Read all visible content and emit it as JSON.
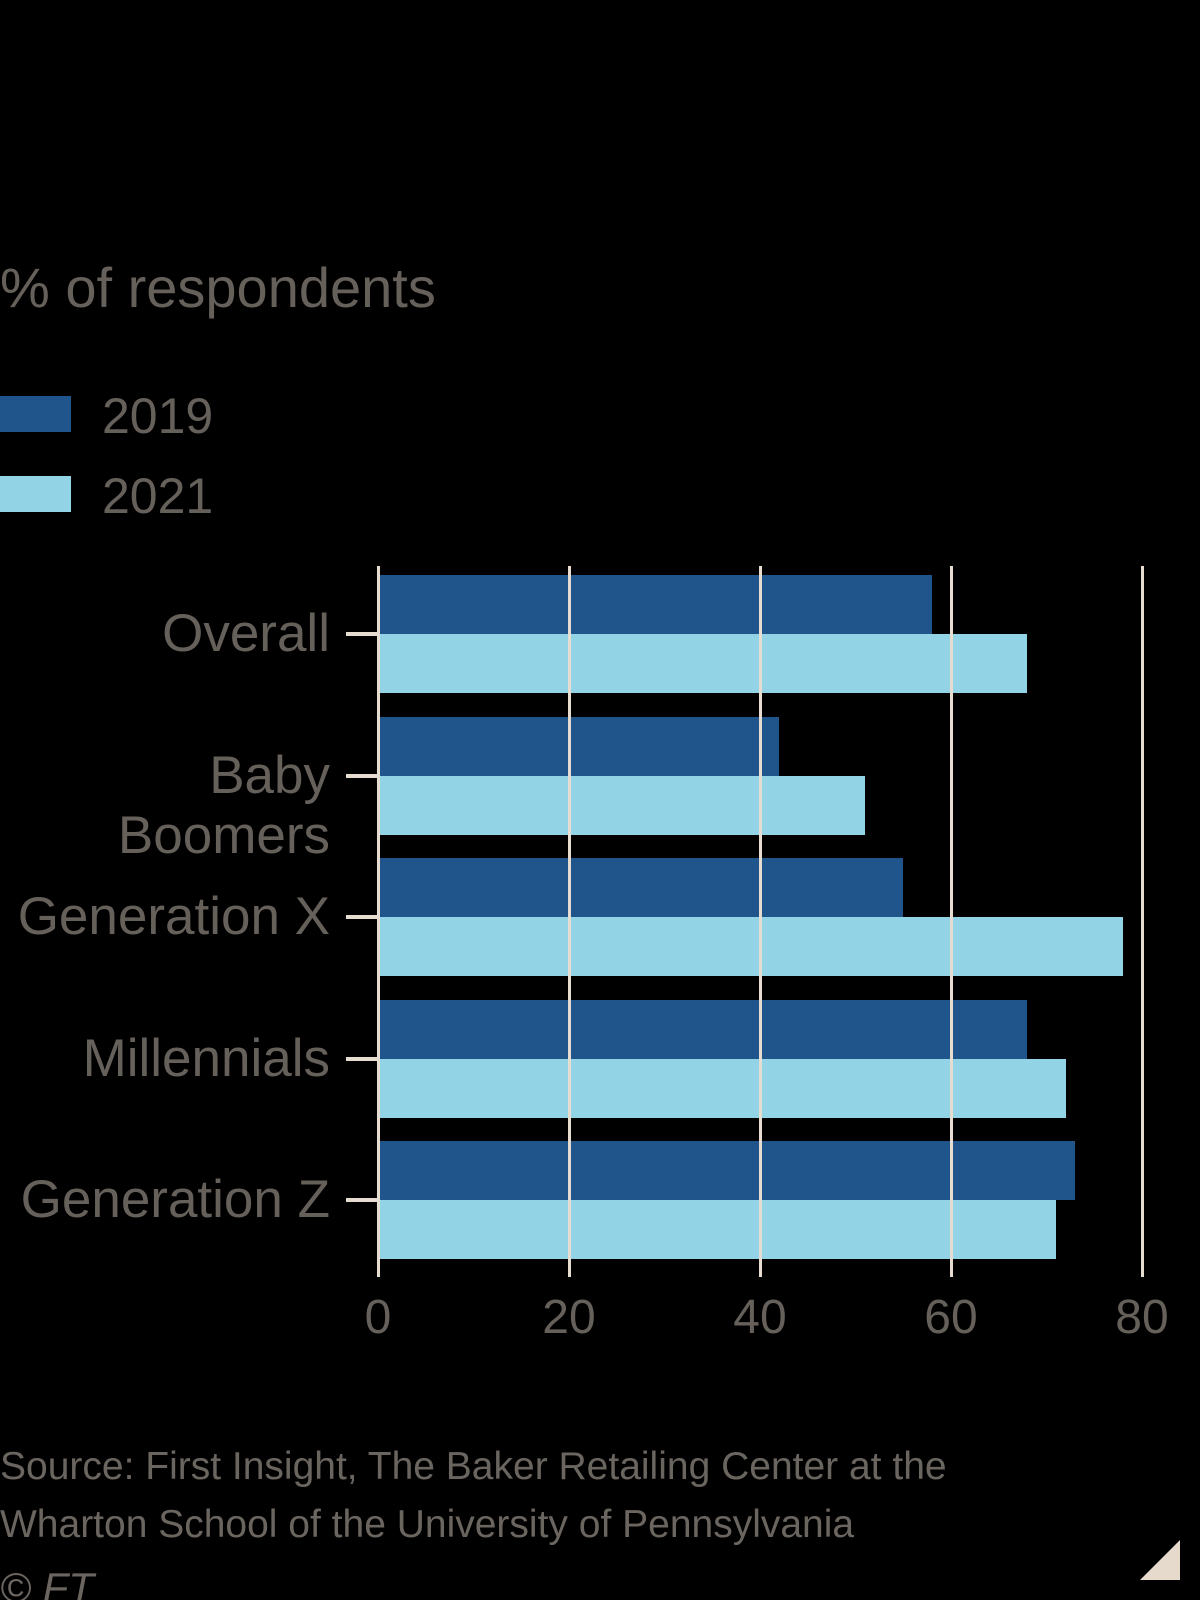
{
  "chart_data": {
    "type": "bar",
    "orientation": "horizontal",
    "subtitle": "% of respondents",
    "categories": [
      "Overall",
      "Baby Boomers",
      "Generation X",
      "Millennials",
      "Generation Z"
    ],
    "series": [
      {
        "name": "2019",
        "color": "#20558c",
        "values": [
          58,
          42,
          55,
          68,
          73
        ]
      },
      {
        "name": "2021",
        "color": "#92d3e6",
        "values": [
          68,
          51,
          78,
          72,
          71
        ]
      }
    ],
    "xlim": [
      0,
      80
    ],
    "xticks": [
      0,
      20,
      40,
      60,
      80
    ],
    "grid": "vertical-gridlines-over-bars",
    "legend_position": "top-left"
  },
  "source": {
    "lines": [
      "Source: First Insight, The Baker Retailing Center at the",
      "Wharton School of the University of Pennsylvania"
    ]
  },
  "footer": {
    "copyright": "© FT"
  },
  "colors": {
    "background": "#000000",
    "text": "#66605b",
    "source_text": "#6b6560",
    "gridline": "#e6dcd0",
    "corner_triangle": "#e6dacd"
  }
}
